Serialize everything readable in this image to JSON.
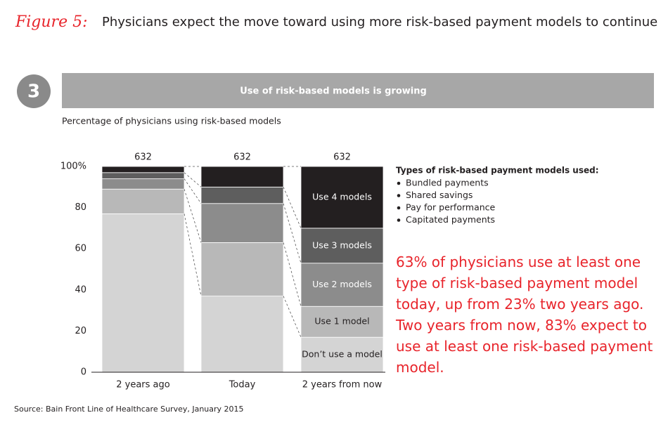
{
  "header": {
    "figure_label": "Figure 5:",
    "title": "Physicians expect the move toward using more risk-based payment models to continue"
  },
  "banner": {
    "number": "3",
    "title": "Use of risk-based models is growing"
  },
  "chart_data": {
    "type": "stacked_bar",
    "subtitle": "Percentage of physicians using risk-based models",
    "categories": [
      "2 years ago",
      "Today",
      "2 years from now"
    ],
    "sample_sizes": [
      632,
      632,
      632
    ],
    "series": [
      {
        "name": "Don’t use a model",
        "color": "#d4d4d4",
        "values": [
          77,
          37,
          17
        ]
      },
      {
        "name": "Use 1 model",
        "color": "#b8b8b8",
        "values": [
          12,
          26,
          15
        ]
      },
      {
        "name": "Use 2 models",
        "color": "#8c8c8c",
        "values": [
          5,
          19,
          21
        ]
      },
      {
        "name": "Use 3 models",
        "color": "#5e5e5e",
        "values": [
          3,
          8,
          17
        ]
      },
      {
        "name": "Use 4 models",
        "color": "#231f20",
        "values": [
          3,
          10,
          30
        ]
      }
    ],
    "ylim": [
      0,
      100
    ],
    "yticks": [
      0,
      20,
      40,
      60,
      80,
      {
        "value": 100,
        "label": "100%"
      }
    ]
  },
  "model_types": {
    "heading": "Types of risk-based payment models used:",
    "items": [
      "Bundled payments",
      "Shared savings",
      "Pay for performance",
      "Capitated payments"
    ]
  },
  "annotation": "63% of physicians use at least one type of risk-based payment model today, up from 23% two years ago. Two years from now, 83% expect to use at least one risk-based payment model.",
  "source": "Source: Bain Front Line of Healthcare Survey, January 2015"
}
